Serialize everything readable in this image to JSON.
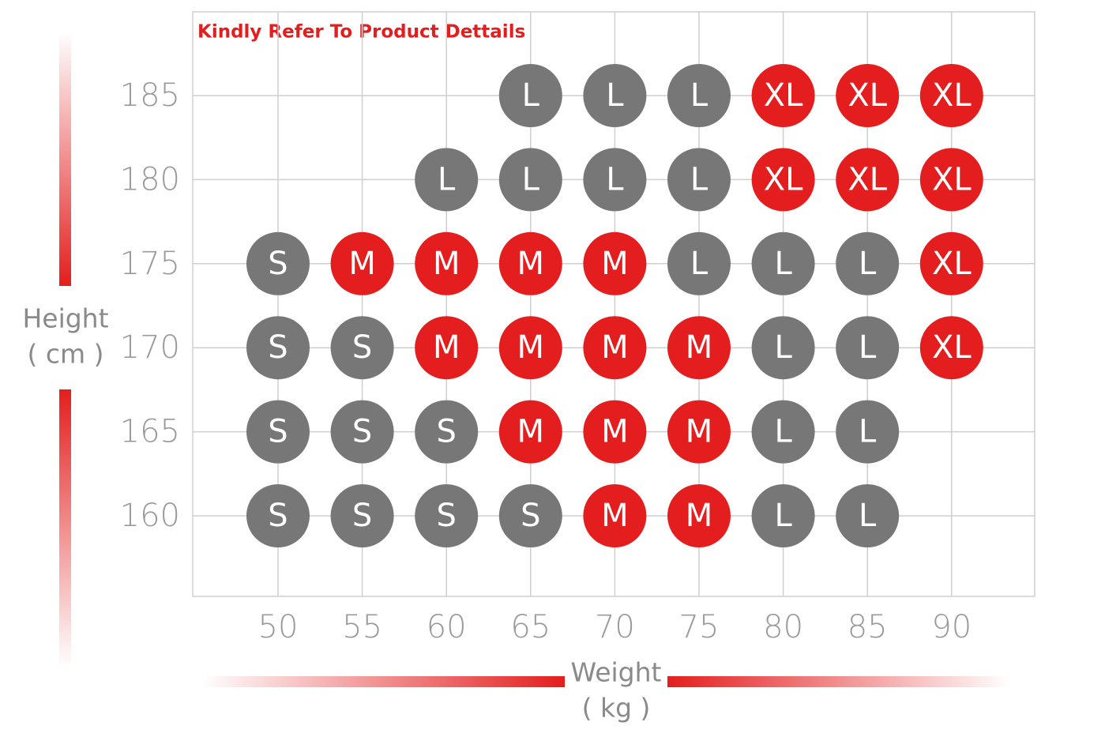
{
  "note": "Kindly Refer To Product Dettails",
  "y_axis": {
    "label": "Height",
    "unit": "( cm )"
  },
  "x_axis": {
    "label": "Weight",
    "unit": "( kg )"
  },
  "weights": [
    50,
    55,
    60,
    65,
    70,
    75,
    80,
    85,
    90
  ],
  "heights": [
    185,
    180,
    175,
    170,
    165,
    160
  ],
  "cells": [
    [
      null,
      null,
      null,
      "L",
      "L",
      "L",
      "XL",
      "XL",
      "XL"
    ],
    [
      null,
      null,
      "L",
      "L",
      "L",
      "L",
      "XL",
      "XL",
      "XL"
    ],
    [
      "S",
      "M",
      "M",
      "M",
      "M",
      "L",
      "L",
      "L",
      "XL"
    ],
    [
      "S",
      "S",
      "M",
      "M",
      "M",
      "M",
      "L",
      "L",
      "XL"
    ],
    [
      "S",
      "S",
      "S",
      "M",
      "M",
      "M",
      "L",
      "L",
      null
    ],
    [
      "S",
      "S",
      "S",
      "S",
      "M",
      "M",
      "L",
      "L",
      null
    ]
  ],
  "size_colors": {
    "S": "#777777",
    "M": "#e41e1e",
    "L": "#777777",
    "XL": "#e41e1e"
  }
}
